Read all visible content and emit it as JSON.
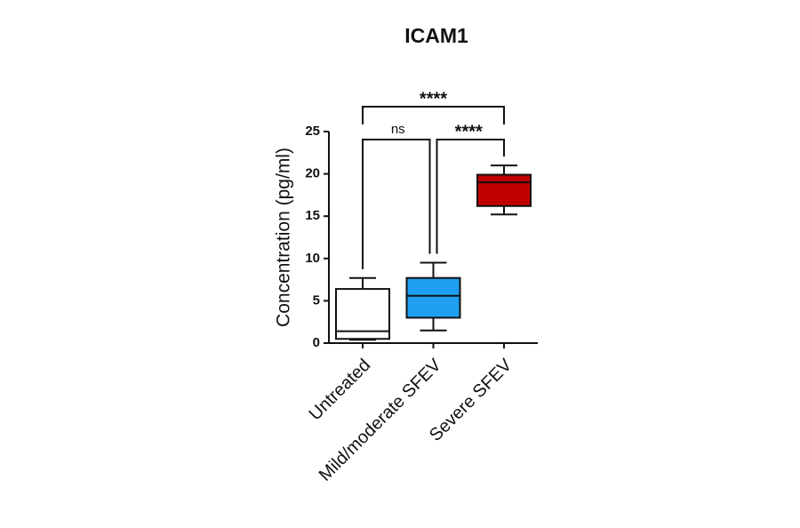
{
  "chart_data": {
    "type": "box",
    "title": "ICAM1",
    "y_label": "Concentration (pg/ml)",
    "categories": [
      "Untreated",
      "Mild/moderate SFEV",
      "Severe SFEV"
    ],
    "colors": [
      "#ffffff",
      "#1e9ff0",
      "#c00000"
    ],
    "boxes": [
      {
        "min": 0.4,
        "q1": 0.5,
        "median": 1.4,
        "q3": 6.4,
        "max": 7.7
      },
      {
        "min": 1.5,
        "q1": 3.0,
        "median": 5.6,
        "q3": 7.7,
        "max": 9.5
      },
      {
        "min": 15.2,
        "q1": 16.2,
        "median": 19.0,
        "q3": 19.9,
        "max": 21.0
      }
    ],
    "ylim": [
      0,
      25
    ],
    "yticks": [
      0,
      5,
      10,
      15,
      20,
      25
    ],
    "comparisons": [
      {
        "groups": [
          "Untreated",
          "Severe SFEV"
        ],
        "label": "****"
      },
      {
        "groups": [
          "Untreated",
          "Mild/moderate SFEV"
        ],
        "label": "ns"
      },
      {
        "groups": [
          "Mild/moderate SFEV",
          "Severe SFEV"
        ],
        "label": "****"
      }
    ]
  }
}
